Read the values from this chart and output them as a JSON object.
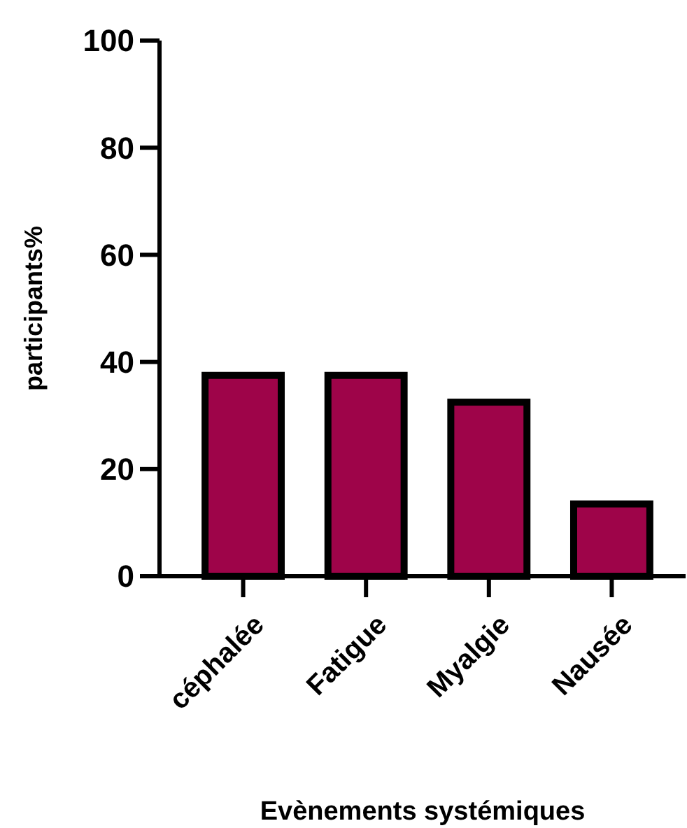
{
  "chart_data": {
    "type": "bar",
    "xlabel": "Evènements systémiques",
    "ylabel": "participants%",
    "categories": [
      "céphalée",
      "Fatigue",
      "Myalgie",
      "Nausée"
    ],
    "values": [
      37.5,
      37.5,
      32.5,
      13.5
    ],
    "color": "#9e0449",
    "ylim": [
      0,
      100
    ],
    "yticks": [
      0,
      20,
      40,
      60,
      80,
      100
    ],
    "grid": false
  }
}
